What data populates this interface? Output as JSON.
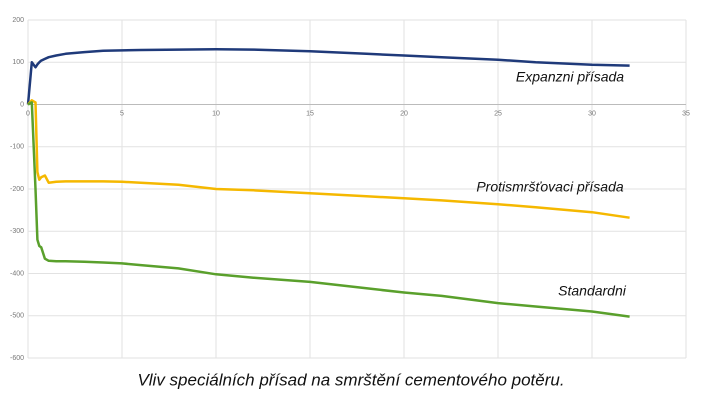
{
  "chart_data": {
    "type": "line",
    "title": "Vliv speciálních přísad na smrštění cementového potěru.",
    "x": [
      0,
      0.2,
      0.4,
      0.5,
      0.6,
      0.7,
      0.9,
      1.1,
      1.5,
      2,
      3,
      4,
      5,
      6,
      8,
      10,
      12,
      15,
      18,
      20,
      22,
      25,
      27,
      30,
      32
    ],
    "series": [
      {
        "name": "Expanzni přísada",
        "color": "#1f3a7a",
        "values": [
          0,
          100,
          88,
          95,
          100,
          104,
          108,
          112,
          116,
          120,
          124,
          127,
          128,
          129,
          130,
          131,
          130,
          126,
          120,
          116,
          112,
          106,
          100,
          94,
          92
        ]
      },
      {
        "name": "Protismršťovaci přísada",
        "color": "#f5b800",
        "values": [
          0,
          10,
          5,
          -160,
          -178,
          -172,
          -168,
          -185,
          -183,
          -182,
          -182,
          -182,
          -183,
          -185,
          -190,
          -200,
          -203,
          -210,
          -217,
          -222,
          -227,
          -236,
          -243,
          -255,
          -268
        ]
      },
      {
        "name": "Standardni",
        "color": "#5aa02c",
        "values": [
          0,
          5,
          -200,
          -320,
          -335,
          -338,
          -365,
          -370,
          -371,
          -371,
          -372,
          -374,
          -376,
          -380,
          -388,
          -402,
          -410,
          -420,
          -435,
          -445,
          -453,
          -470,
          -478,
          -490,
          -502
        ]
      }
    ],
    "xlim": [
      0,
      35
    ],
    "xticks": [
      0,
      5,
      10,
      15,
      20,
      25,
      30,
      35
    ],
    "ylim": [
      -600,
      200
    ],
    "yticks": [
      -600,
      -500,
      -400,
      -300,
      -200,
      -100,
      0,
      100,
      200
    ],
    "grid": true
  }
}
